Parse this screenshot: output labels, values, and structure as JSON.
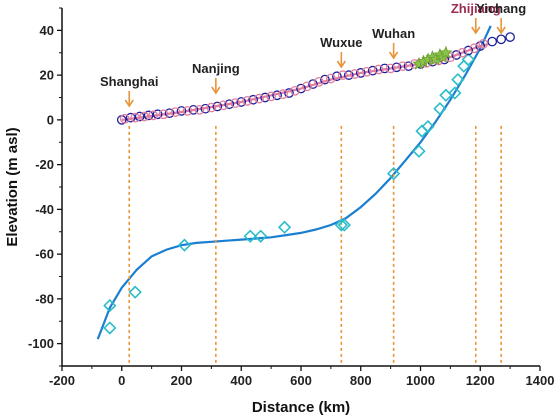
{
  "chart_data": {
    "type": "scatter",
    "xlabel": "Distance (km)",
    "ylabel": "Elevation (m asl)",
    "xlim": [
      -200,
      1400
    ],
    "ylim": [
      -110,
      50
    ],
    "xticks": [
      -200,
      0,
      200,
      400,
      600,
      800,
      1000,
      1200,
      1400
    ],
    "yticks": [
      -100,
      -80,
      -60,
      -40,
      -20,
      0,
      20,
      40
    ],
    "grid": false,
    "cities": [
      {
        "name": "Shanghai",
        "x": 25,
        "color": "#222222"
      },
      {
        "name": "Nanjing",
        "x": 315,
        "color": "#222222"
      },
      {
        "name": "Wuxue",
        "x": 735,
        "color": "#222222"
      },
      {
        "name": "Wuhan",
        "x": 910,
        "color": "#222222"
      },
      {
        "name": "Zhijiang",
        "x": 1185,
        "color": "#9b2d4f"
      },
      {
        "name": "Yichang",
        "x": 1270,
        "color": "#222222"
      }
    ],
    "series": [
      {
        "marker": "diamond",
        "color": "#2bbcc9",
        "points": [
          [
            -40,
            -93
          ],
          [
            -40,
            -83
          ],
          [
            45,
            -77
          ],
          [
            210,
            -56
          ],
          [
            430,
            -52
          ],
          [
            465,
            -52
          ],
          [
            545,
            -48
          ],
          [
            735,
            -47
          ],
          [
            745,
            -47
          ],
          [
            910,
            -24
          ],
          [
            995,
            -14
          ],
          [
            1005,
            -5
          ],
          [
            1025,
            -3
          ],
          [
            1065,
            5
          ],
          [
            1085,
            11
          ],
          [
            1115,
            12
          ],
          [
            1125,
            18
          ],
          [
            1145,
            24
          ],
          [
            1160,
            27
          ]
        ]
      },
      {
        "marker": "circle",
        "color": "#1f1f9e",
        "points": [
          [
            0,
            0
          ],
          [
            30,
            1
          ],
          [
            60,
            1.5
          ],
          [
            90,
            2
          ],
          [
            120,
            2.5
          ],
          [
            160,
            3
          ],
          [
            200,
            4
          ],
          [
            240,
            4.5
          ],
          [
            280,
            5
          ],
          [
            320,
            6
          ],
          [
            360,
            7
          ],
          [
            400,
            8
          ],
          [
            440,
            9
          ],
          [
            480,
            10
          ],
          [
            520,
            11
          ],
          [
            560,
            12
          ],
          [
            600,
            14
          ],
          [
            640,
            16
          ],
          [
            680,
            18
          ],
          [
            720,
            19.5
          ],
          [
            760,
            20
          ],
          [
            800,
            21
          ],
          [
            840,
            22
          ],
          [
            880,
            23
          ],
          [
            920,
            23.5
          ],
          [
            960,
            24
          ],
          [
            1000,
            25
          ],
          [
            1040,
            26
          ],
          [
            1080,
            27
          ],
          [
            1120,
            29
          ],
          [
            1160,
            31
          ],
          [
            1200,
            33
          ],
          [
            1240,
            35
          ],
          [
            1270,
            36
          ],
          [
            1300,
            37
          ]
        ]
      },
      {
        "marker": "circle",
        "color": "#e07fa0",
        "points": [
          [
            10,
            0.5
          ],
          [
            45,
            1
          ],
          [
            75,
            1.5
          ],
          [
            105,
            2
          ],
          [
            140,
            2.5
          ],
          [
            180,
            3.5
          ],
          [
            220,
            4
          ],
          [
            260,
            4.5
          ],
          [
            300,
            5.5
          ],
          [
            340,
            6.5
          ],
          [
            380,
            7.5
          ],
          [
            420,
            8.5
          ],
          [
            460,
            9.5
          ],
          [
            500,
            10.5
          ],
          [
            540,
            11.5
          ],
          [
            580,
            13
          ],
          [
            620,
            15
          ],
          [
            660,
            17
          ],
          [
            700,
            18.5
          ],
          [
            740,
            20
          ],
          [
            780,
            20.5
          ],
          [
            820,
            21.5
          ],
          [
            860,
            22.5
          ],
          [
            900,
            23
          ],
          [
            940,
            24
          ],
          [
            980,
            25
          ],
          [
            1020,
            25.5
          ],
          [
            1060,
            26.5
          ],
          [
            1100,
            28
          ],
          [
            1140,
            30
          ],
          [
            1180,
            32
          ],
          [
            1210,
            34
          ]
        ]
      },
      {
        "marker": "star",
        "color": "#8bc34a",
        "points": [
          [
            995,
            25
          ],
          [
            1010,
            26
          ],
          [
            1025,
            27
          ],
          [
            1040,
            28
          ],
          [
            1050,
            27
          ],
          [
            1065,
            29
          ],
          [
            1075,
            28
          ],
          [
            1085,
            30
          ]
        ]
      }
    ],
    "fits": [
      {
        "color": "#1a7fd0",
        "points": [
          [
            -80,
            -98
          ],
          [
            -40,
            -84
          ],
          [
            0,
            -75
          ],
          [
            50,
            -67
          ],
          [
            100,
            -61
          ],
          [
            150,
            -58
          ],
          [
            200,
            -56
          ],
          [
            250,
            -55
          ],
          [
            300,
            -54.5
          ],
          [
            350,
            -54
          ],
          [
            400,
            -53.5
          ],
          [
            450,
            -53
          ],
          [
            500,
            -52.5
          ],
          [
            550,
            -51.5
          ],
          [
            600,
            -50.5
          ],
          [
            650,
            -49
          ],
          [
            700,
            -47
          ],
          [
            750,
            -44
          ],
          [
            800,
            -39
          ],
          [
            850,
            -33
          ],
          [
            900,
            -26
          ],
          [
            950,
            -18
          ],
          [
            1000,
            -10
          ],
          [
            1050,
            -1
          ],
          [
            1100,
            9
          ],
          [
            1150,
            20
          ],
          [
            1200,
            32
          ],
          [
            1235,
            42
          ]
        ]
      },
      {
        "color": "#e07fa0",
        "points": [
          [
            0,
            0
          ],
          [
            200,
            3.5
          ],
          [
            400,
            8
          ],
          [
            600,
            14
          ],
          [
            700,
            18
          ],
          [
            800,
            21
          ],
          [
            1000,
            25
          ],
          [
            1100,
            28
          ],
          [
            1200,
            33
          ],
          [
            1230,
            34
          ]
        ]
      }
    ]
  }
}
